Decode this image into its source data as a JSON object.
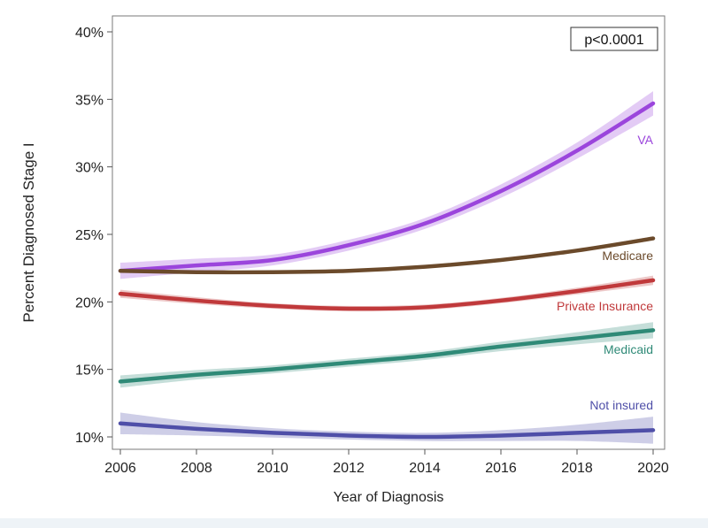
{
  "chart_data": {
    "type": "line",
    "title": "",
    "xlabel": "Year of Diagnosis",
    "ylabel": "Percent Diagnosed Stage I",
    "xlim": [
      2006,
      2020
    ],
    "ylim": [
      10,
      40
    ],
    "x_ticks": [
      2006,
      2008,
      2010,
      2012,
      2014,
      2016,
      2018,
      2020
    ],
    "x_tick_labels": [
      "2006",
      "2008",
      "2010",
      "2012",
      "2014",
      "2016",
      "2018",
      "2020"
    ],
    "y_ticks": [
      10,
      15,
      20,
      25,
      30,
      35,
      40
    ],
    "y_tick_labels": [
      "10%",
      "15%",
      "20%",
      "25%",
      "30%",
      "35%",
      "40%"
    ],
    "grid": false,
    "annotation": "p<0.0001",
    "x": [
      2006,
      2008,
      2010,
      2012,
      2014,
      2016,
      2018,
      2020
    ],
    "series": [
      {
        "name": "VA",
        "color": "#9b45dc",
        "values": [
          22.3,
          22.7,
          23.1,
          24.2,
          25.8,
          28.2,
          31.2,
          34.7
        ],
        "ci_half_width": [
          0.6,
          0.5,
          0.4,
          0.4,
          0.4,
          0.5,
          0.6,
          0.9
        ]
      },
      {
        "name": "Medicare",
        "color": "#6b4a2b",
        "values": [
          22.3,
          22.2,
          22.2,
          22.3,
          22.6,
          23.1,
          23.8,
          24.7
        ],
        "ci_half_width": [
          0.15,
          0.12,
          0.1,
          0.1,
          0.1,
          0.1,
          0.12,
          0.15
        ]
      },
      {
        "name": "Private Insurance",
        "color": "#c0393b",
        "values": [
          20.6,
          20.1,
          19.7,
          19.5,
          19.6,
          20.1,
          20.8,
          21.6
        ],
        "ci_half_width": [
          0.3,
          0.25,
          0.2,
          0.2,
          0.2,
          0.2,
          0.25,
          0.35
        ]
      },
      {
        "name": "Medicaid",
        "color": "#2f8a77",
        "values": [
          14.1,
          14.6,
          15.0,
          15.5,
          16.0,
          16.7,
          17.3,
          17.9
        ],
        "ci_half_width": [
          0.45,
          0.35,
          0.3,
          0.3,
          0.3,
          0.35,
          0.45,
          0.6
        ]
      },
      {
        "name": "Not insured",
        "color": "#4f4fa8",
        "values": [
          11.0,
          10.6,
          10.3,
          10.1,
          10.0,
          10.1,
          10.3,
          10.5
        ],
        "ci_half_width": [
          0.8,
          0.5,
          0.35,
          0.3,
          0.3,
          0.4,
          0.6,
          1.0
        ]
      }
    ]
  }
}
